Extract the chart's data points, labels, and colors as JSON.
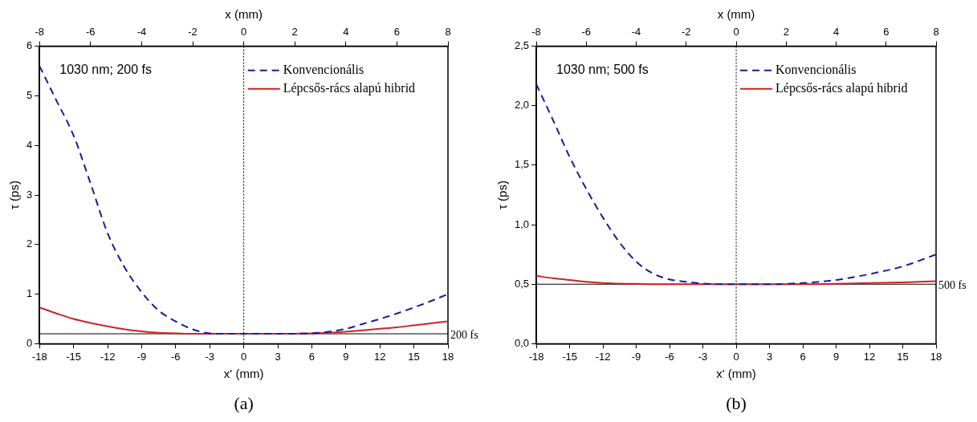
{
  "chart_data": [
    {
      "type": "line",
      "xlabel": "x' (mm)",
      "x2label": "x (mm)",
      "ylabel": "τ (ps)",
      "x": [
        -18,
        -16.5,
        -15,
        -13.5,
        -12,
        -10.5,
        -9,
        -7.5,
        -6,
        -4.5,
        -3,
        -1.5,
        0,
        3,
        6,
        7.5,
        9,
        10.5,
        12,
        13.5,
        15,
        16.5,
        18
      ],
      "series": [
        {
          "name": "Konvencionális",
          "color": "#1a1aa0",
          "line_style": "dashed",
          "values": [
            5.6,
            4.9,
            4.2,
            3.23,
            2.23,
            1.54,
            1.04,
            0.67,
            0.45,
            0.29,
            0.21,
            0.2,
            0.2,
            0.2,
            0.21,
            0.24,
            0.3,
            0.4,
            0.5,
            0.61,
            0.73,
            0.86,
            1.0
          ]
        },
        {
          "name": "Lépcsős-rács alapú hibrid",
          "color": "#cc2222",
          "line_style": "solid",
          "values": [
            0.73,
            0.61,
            0.5,
            0.42,
            0.35,
            0.29,
            0.25,
            0.22,
            0.21,
            0.2,
            0.2,
            0.2,
            0.2,
            0.2,
            0.21,
            0.22,
            0.24,
            0.27,
            0.3,
            0.33,
            0.37,
            0.41,
            0.45
          ]
        }
      ],
      "xlim": [
        -18,
        18
      ],
      "xticks": [
        -18,
        -15,
        -12,
        -9,
        -6,
        -3,
        0,
        3,
        6,
        9,
        12,
        15,
        18
      ],
      "x2lim": [
        -8,
        8
      ],
      "x2ticks": [
        -8,
        -6,
        -4,
        -2,
        0,
        2,
        4,
        6,
        8
      ],
      "ylim": [
        0,
        6
      ],
      "yticks": [
        0,
        1,
        2,
        3,
        4,
        5,
        6
      ],
      "ref_lines": [
        {
          "axis": "y",
          "value": 0.2,
          "label": "200 fs",
          "color": "#000000",
          "line_style": "solid"
        },
        {
          "axis": "x",
          "value": 0,
          "label": null,
          "color": "#000000",
          "line_style": "dotted"
        }
      ],
      "annotations": [
        "1030 nm; 200 fs",
        "(a)"
      ],
      "legend": "top right",
      "grid": false,
      "marker": "none"
    },
    {
      "type": "line",
      "xlabel": "x' (mm)",
      "x2label": "x (mm)",
      "ylabel": "τ (ps)",
      "x": [
        -18,
        -16.5,
        -15,
        -13.5,
        -12,
        -10.5,
        -9,
        -7.5,
        -6,
        -4.5,
        -3,
        0,
        3,
        6,
        9,
        12,
        15,
        18
      ],
      "series": [
        {
          "name": "Konvencionális",
          "color": "#1a1aa0",
          "line_style": "dashed",
          "values": [
            2.18,
            1.88,
            1.57,
            1.3,
            1.06,
            0.85,
            0.69,
            0.59,
            0.54,
            0.52,
            0.505,
            0.5,
            0.5,
            0.51,
            0.535,
            0.585,
            0.65,
            0.75
          ]
        },
        {
          "name": "Lépcsős-rács alapú hibrid",
          "color": "#cc2222",
          "line_style": "solid",
          "values": [
            0.57,
            0.55,
            0.535,
            0.52,
            0.51,
            0.505,
            0.503,
            0.5,
            0.5,
            0.5,
            0.5,
            0.5,
            0.5,
            0.5,
            0.503,
            0.51,
            0.515,
            0.525
          ]
        }
      ],
      "xlim": [
        -18,
        18
      ],
      "xticks": [
        -18,
        -15,
        -12,
        -9,
        -6,
        -3,
        0,
        3,
        6,
        9,
        12,
        15,
        18
      ],
      "x2lim": [
        -8,
        8
      ],
      "x2ticks": [
        -8,
        -6,
        -4,
        -2,
        0,
        2,
        4,
        6,
        8
      ],
      "ylim": [
        0,
        2.5
      ],
      "yticks": [
        {
          "value": 0,
          "label": "0,0"
        },
        {
          "value": 0.5,
          "label": "0,5"
        },
        {
          "value": 1,
          "label": "1,0"
        },
        {
          "value": 1.5,
          "label": "1,5"
        },
        {
          "value": 2,
          "label": "2,0"
        },
        {
          "value": 2.5,
          "label": "2,5"
        }
      ],
      "ref_lines": [
        {
          "axis": "y",
          "value": 0.5,
          "label": "500 fs",
          "color": "#000000",
          "line_style": "solid"
        },
        {
          "axis": "x",
          "value": 0,
          "label": null,
          "color": "#000000",
          "line_style": "dotted"
        }
      ],
      "annotations": [
        "1030 nm; 500 fs",
        "(b)"
      ],
      "legend": "top right",
      "grid": false,
      "marker": "none"
    }
  ]
}
